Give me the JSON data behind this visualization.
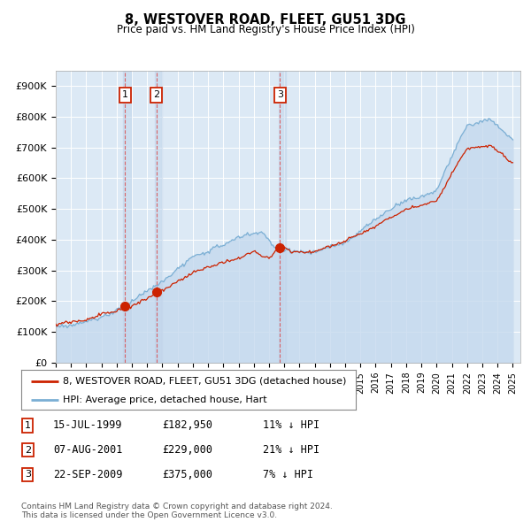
{
  "title": "8, WESTOVER ROAD, FLEET, GU51 3DG",
  "subtitle": "Price paid vs. HM Land Registry's House Price Index (HPI)",
  "hpi_color": "#7bafd4",
  "hpi_fill_color": "#c5d9ee",
  "price_color": "#cc2200",
  "vline_color": "#dd4444",
  "bg_color": "#dce9f5",
  "label_box_color": "#cc2200",
  "legend_entries": [
    {
      "label": "8, WESTOVER ROAD, FLEET, GU51 3DG (detached house)",
      "color": "#cc2200"
    },
    {
      "label": "HPI: Average price, detached house, Hart",
      "color": "#7bafd4"
    }
  ],
  "table_rows": [
    {
      "num": "1",
      "date": "15-JUL-1999",
      "price": "£182,950",
      "note": "11% ↓ HPI"
    },
    {
      "num": "2",
      "date": "07-AUG-2001",
      "price": "£229,000",
      "note": "21% ↓ HPI"
    },
    {
      "num": "3",
      "date": "22-SEP-2009",
      "price": "£375,000",
      "note": "7% ↓ HPI"
    }
  ],
  "footer": "Contains HM Land Registry data © Crown copyright and database right 2024.\nThis data is licensed under the Open Government Licence v3.0.",
  "sale_years": [
    1999.54,
    2001.6,
    2009.72
  ],
  "sale_prices": [
    182950,
    229000,
    375000
  ],
  "sale_labels": [
    "1",
    "2",
    "3"
  ],
  "ylim": [
    0,
    950000
  ],
  "yticks": [
    0,
    100000,
    200000,
    300000,
    400000,
    500000,
    600000,
    700000,
    800000,
    900000
  ],
  "xmin": 1995.0,
  "xmax": 2025.5
}
